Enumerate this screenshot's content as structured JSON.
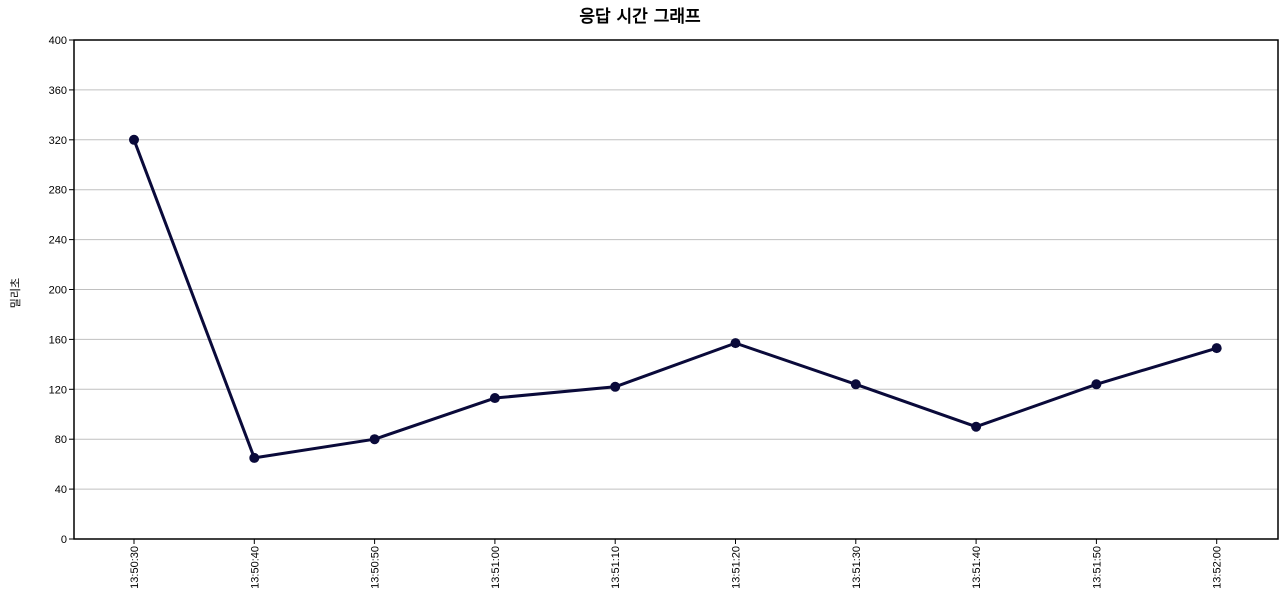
{
  "chart_data": {
    "type": "line",
    "title": "응답 시간 그래프",
    "ylabel": "밀리초",
    "xlabel": "",
    "categories": [
      "13:50:30",
      "13:50:40",
      "13:50:50",
      "13:51:00",
      "13:51:10",
      "13:51:20",
      "13:51:30",
      "13:51:40",
      "13:51:50",
      "13:52:00"
    ],
    "series": [
      {
        "values": [
          320,
          65,
          80,
          113,
          122,
          157,
          124,
          90,
          124,
          153
        ],
        "color": "#0a0a3a"
      }
    ],
    "ylim": [
      0,
      400
    ],
    "yticks": [
      "0",
      "40",
      "80",
      "120",
      "160",
      "200",
      "240",
      "280",
      "320",
      "360",
      "400"
    ],
    "grid": true,
    "legend": "none"
  }
}
